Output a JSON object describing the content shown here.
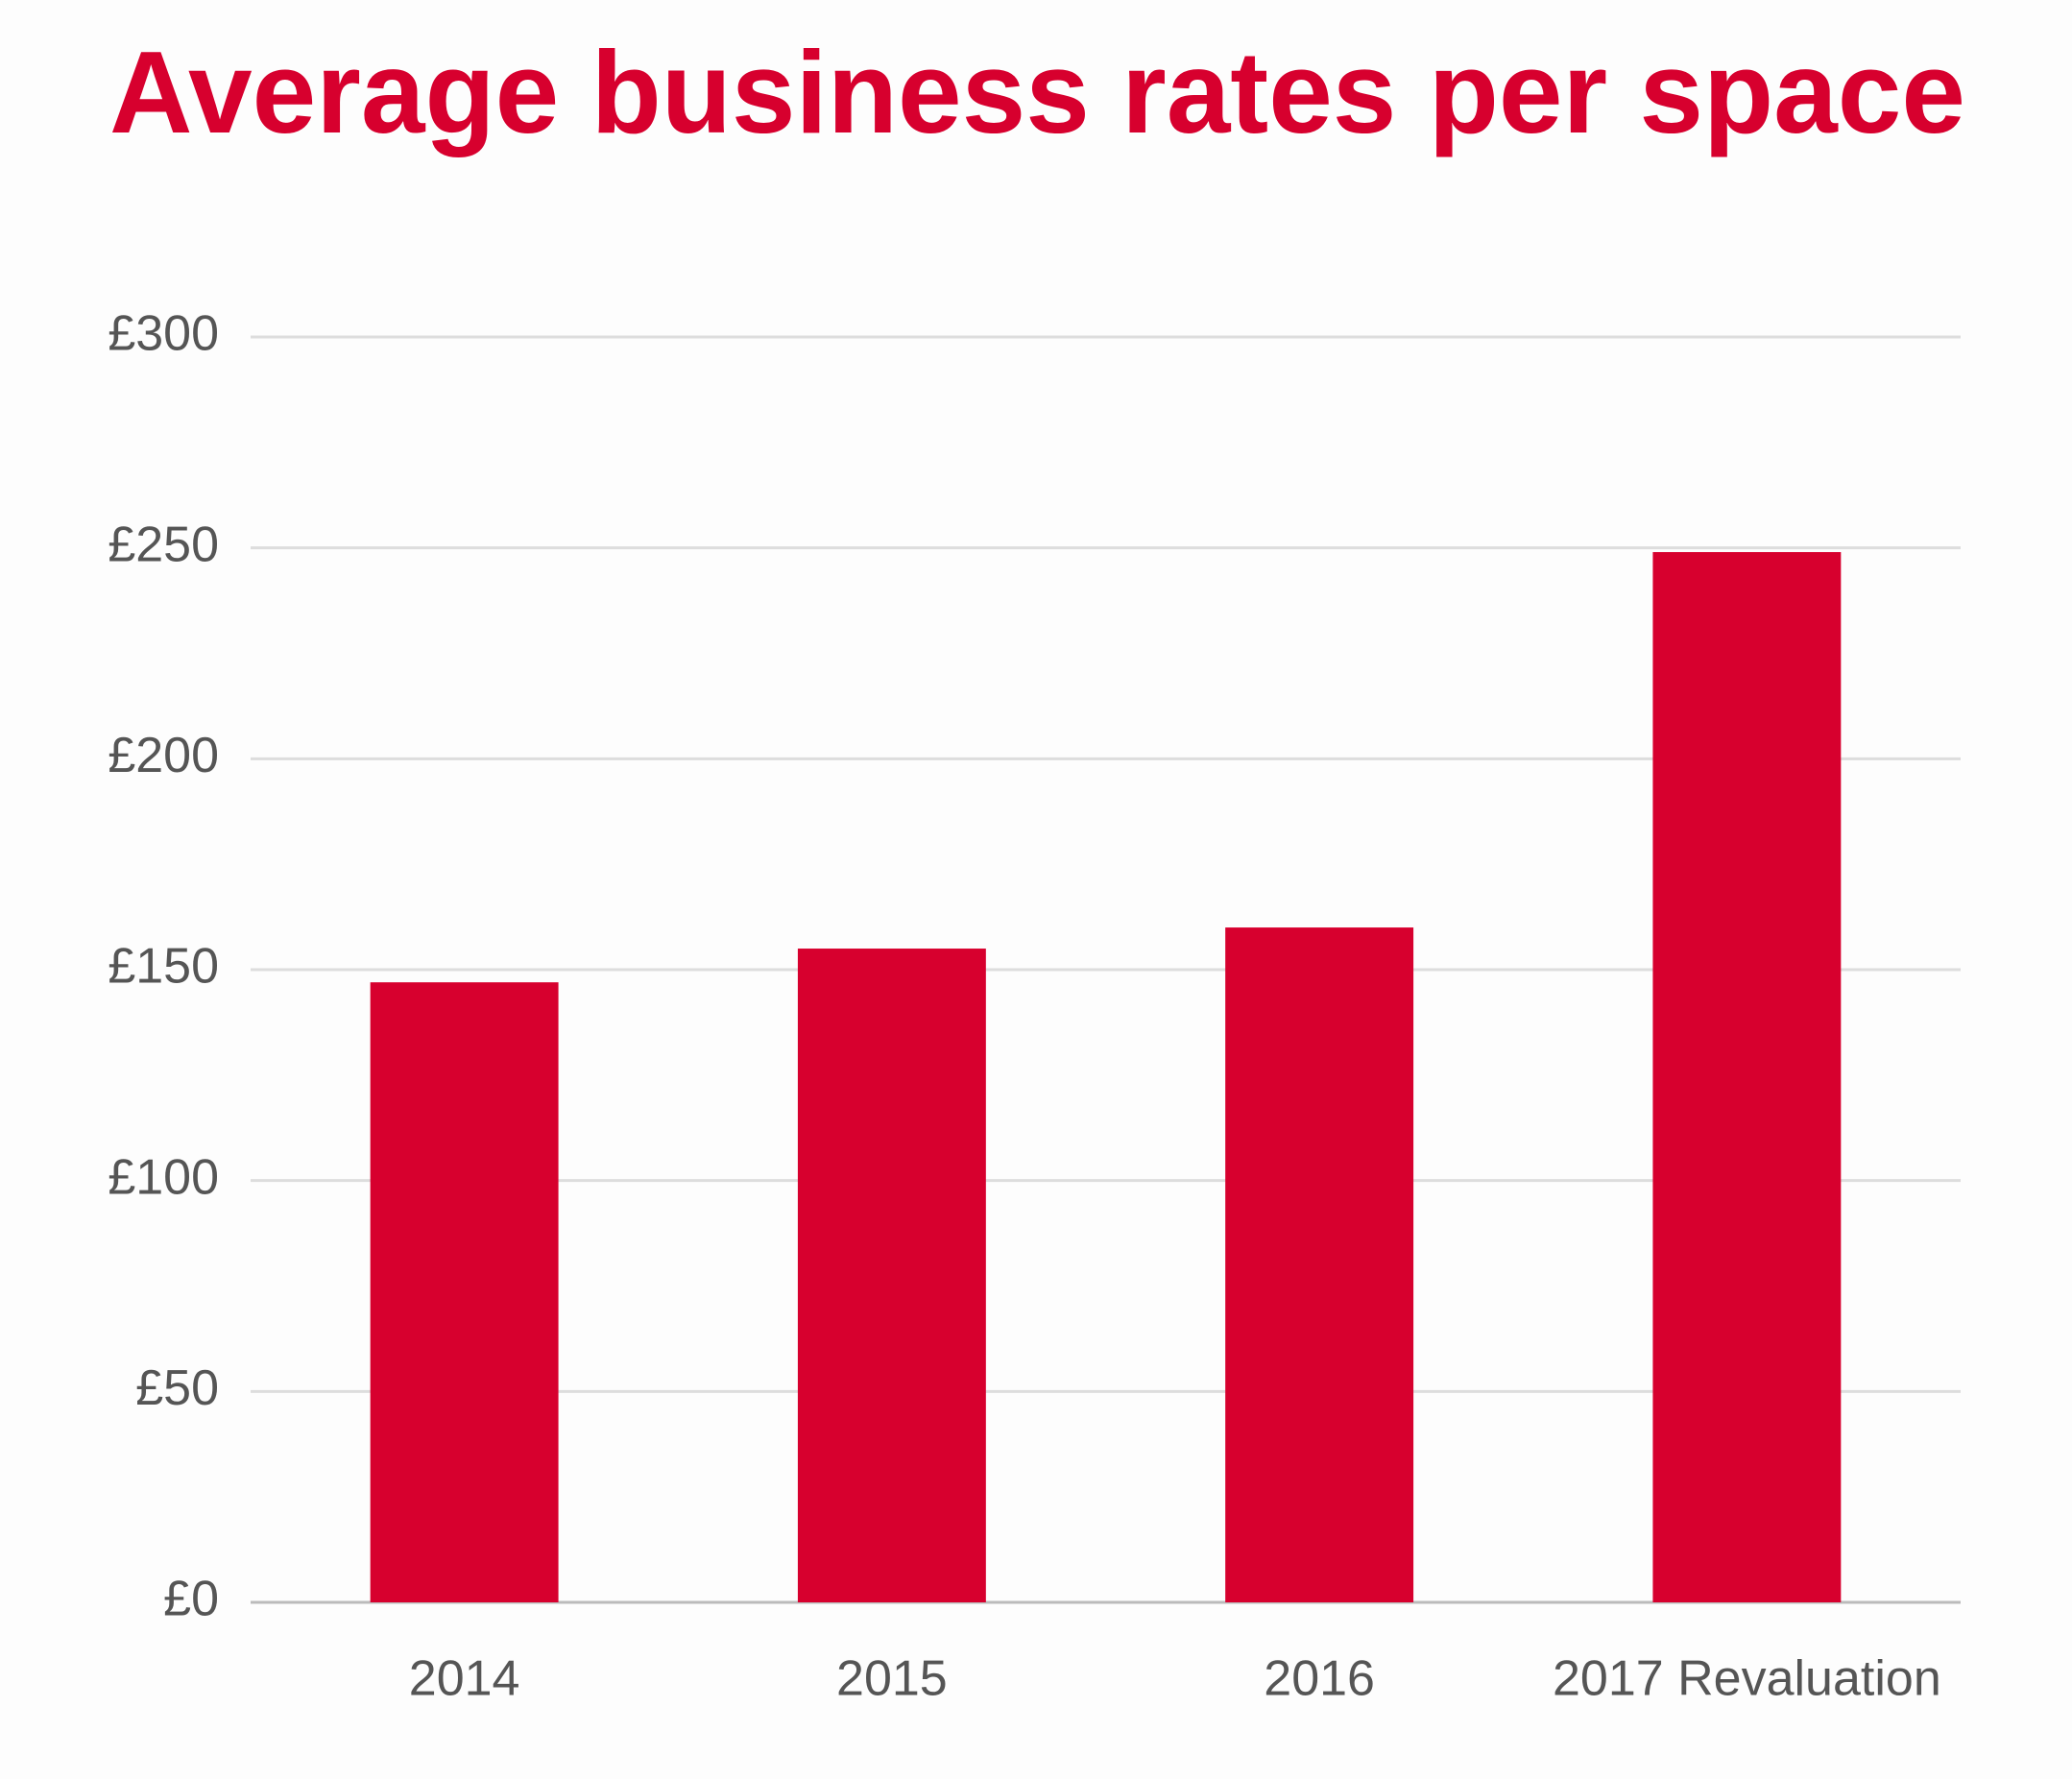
{
  "chart_data": {
    "type": "bar",
    "title": "Average business rates per space",
    "categories": [
      "2014",
      "2015",
      "2016",
      "2017 Revaluation"
    ],
    "values": [
      147,
      155,
      160,
      249
    ],
    "color": "#d7002e",
    "ylim": [
      0,
      300
    ],
    "yticks": [
      {
        "value": 0,
        "label": "£0"
      },
      {
        "value": 50,
        "label": "£50"
      },
      {
        "value": 100,
        "label": "£100"
      },
      {
        "value": 150,
        "label": "£150"
      },
      {
        "value": 200,
        "label": "£200"
      },
      {
        "value": 250,
        "label": "£250"
      },
      {
        "value": 300,
        "label": "£300"
      }
    ],
    "grid": true
  }
}
